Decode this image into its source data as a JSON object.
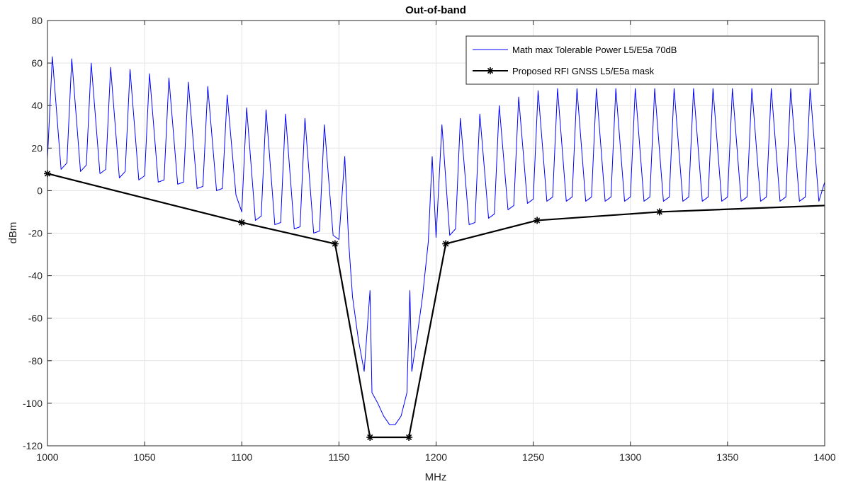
{
  "chart_data": {
    "type": "line",
    "title": "Out-of-band",
    "xlabel": "MHz",
    "ylabel": "dBm",
    "xlim": [
      1000,
      1400
    ],
    "ylim": [
      -120,
      80
    ],
    "grid": true,
    "legend_position": "top-right",
    "x_ticks": [
      1000,
      1050,
      1100,
      1150,
      1200,
      1250,
      1300,
      1350,
      1400
    ],
    "y_ticks": [
      -120,
      -100,
      -80,
      -60,
      -40,
      -20,
      0,
      20,
      40,
      60,
      80
    ],
    "series": [
      {
        "name": "Math max Tolerable Power L5/E5a 70dB",
        "color": "#0000ff",
        "style": "line",
        "x": [
          1000,
          1002.5,
          1007,
          1010,
          1012.5,
          1017,
          1020,
          1022.5,
          1027,
          1030,
          1032.5,
          1037,
          1040,
          1042.5,
          1047,
          1050,
          1052.5,
          1057,
          1060,
          1062.5,
          1067,
          1070,
          1072.5,
          1077,
          1080,
          1082.5,
          1087,
          1090,
          1092.5,
          1097,
          1100,
          1102.5,
          1107,
          1110,
          1112.5,
          1117,
          1120,
          1122.5,
          1127,
          1130,
          1132.5,
          1137,
          1140,
          1142.5,
          1147,
          1150,
          1153,
          1155,
          1157,
          1160,
          1163,
          1166,
          1167,
          1170,
          1173,
          1176,
          1179,
          1182,
          1185,
          1186.5,
          1187.5,
          1190,
          1193,
          1196,
          1198,
          1200,
          1203,
          1207,
          1210,
          1212.5,
          1217,
          1220,
          1222.5,
          1227,
          1230,
          1232.5,
          1237,
          1240,
          1242.5,
          1247,
          1250,
          1252.5,
          1257,
          1260,
          1262.5,
          1267,
          1270,
          1272.5,
          1277,
          1280,
          1282.5,
          1287,
          1290,
          1292.5,
          1297,
          1300,
          1302.5,
          1307,
          1310,
          1312.5,
          1317,
          1320,
          1322.5,
          1327,
          1330,
          1332.5,
          1337,
          1340,
          1342.5,
          1347,
          1350,
          1352.5,
          1357,
          1360,
          1362.5,
          1367,
          1370,
          1372.5,
          1377,
          1380,
          1382.5,
          1387,
          1390,
          1392.5,
          1397,
          1400
        ],
        "y": [
          15,
          63,
          10,
          13,
          62,
          9,
          12,
          60,
          8,
          10,
          58,
          6,
          9,
          57,
          5,
          7,
          55,
          4,
          5,
          53,
          3,
          4,
          51,
          1,
          2,
          49,
          0,
          1,
          45,
          -2,
          -10,
          39,
          -14,
          -12,
          38,
          -16,
          -15,
          36,
          -18,
          -17,
          34,
          -20,
          -19,
          31,
          -21,
          -23,
          16,
          -24,
          -50,
          -70,
          -85,
          -47,
          -95,
          -100,
          -106,
          -110,
          -110,
          -106,
          -95,
          -47,
          -85,
          -70,
          -50,
          -24,
          16,
          -22,
          31,
          -21,
          -18,
          34,
          -16,
          -15,
          36,
          -13,
          -11,
          40,
          -9,
          -7,
          44,
          -6,
          -4,
          47,
          -5,
          -3,
          48,
          -5,
          -3,
          48,
          -5,
          -3,
          48,
          -5,
          -3,
          48,
          -5,
          -3,
          48,
          -5,
          -3,
          48,
          -5,
          -3,
          48,
          -5,
          -3,
          48,
          -5,
          -3,
          48,
          -5,
          -3,
          48,
          -5,
          -3,
          48,
          -5,
          -3,
          48,
          -5,
          -3,
          48,
          -5,
          -3,
          48,
          -5,
          4
        ]
      },
      {
        "name": "Proposed RFI GNSS L5/E5a mask",
        "color": "#000000",
        "style": "line-marker",
        "marker": "asterisk",
        "x": [
          1000,
          1100,
          1148,
          1166,
          1186,
          1205,
          1252,
          1315,
          1400
        ],
        "y": [
          8,
          -15,
          -25,
          -116,
          -116,
          -25,
          -14,
          -10,
          -7
        ],
        "marker_x": [
          1000,
          1100,
          1148,
          1166,
          1186,
          1205,
          1252,
          1315
        ]
      }
    ]
  }
}
